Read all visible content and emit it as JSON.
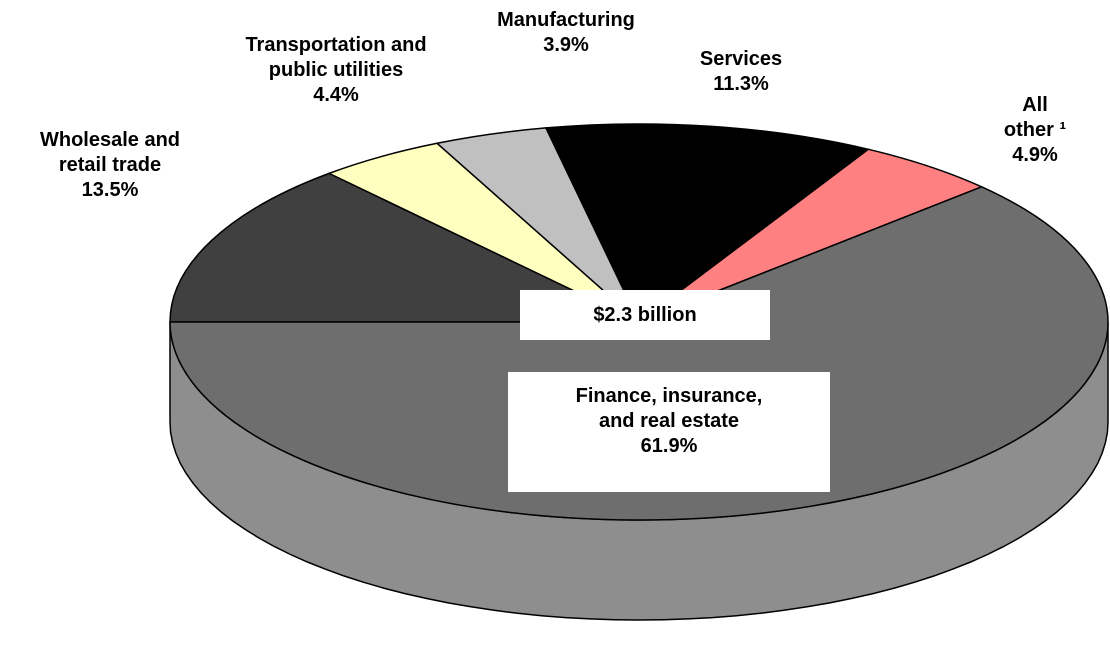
{
  "chart_data": {
    "type": "pie3d",
    "categories": [
      "Wholesale and\nretail trade",
      "Transportation and\npublic utilities",
      "Manufacturing",
      "Services",
      "All other ¹",
      "Finance, insurance,\nand real estate"
    ],
    "values": [
      13.5,
      4.4,
      3.9,
      11.3,
      4.9,
      61.9
    ],
    "value_labels": [
      "13.5%",
      "4.4%",
      "3.9%",
      "11.3%",
      "4.9%",
      "61.9%"
    ],
    "colors": [
      "#404040",
      "#ffffc0",
      "#c0c0c0",
      "#000000",
      "#ff8080",
      "#6e6e6e"
    ],
    "side_colors": [
      "#555555",
      "#e6e6a8",
      "#a8a8a8",
      "#222222",
      "#e07070",
      "#8e8e8e"
    ],
    "annotation": "$2.3 billion"
  }
}
